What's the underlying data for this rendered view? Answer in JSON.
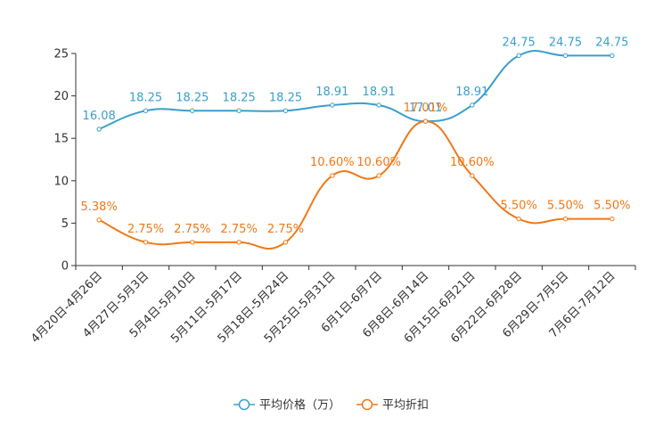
{
  "chart_data": {
    "type": "line",
    "categories": [
      "4月20日-4月26日",
      "4月27日-5月3日",
      "5月4日-5月10日",
      "5月11日-5月17日",
      "5月18日-5月24日",
      "5月25日-5月31日",
      "6月1日-6月7日",
      "6月8日-6月14日",
      "6月15日-6月21日",
      "6月22日-6月28日",
      "6月29日-7月5日",
      "7月6日-7月12日"
    ],
    "ylim": [
      0,
      25
    ],
    "yticks": [
      0,
      5,
      10,
      15,
      20,
      25
    ],
    "series": [
      {
        "name": "平均价格（万）",
        "color": "#3a9fcb",
        "values": [
          16.08,
          18.25,
          18.25,
          18.25,
          18.25,
          18.91,
          18.91,
          17.01,
          18.91,
          24.75,
          24.75,
          24.75
        ],
        "labels": [
          "16.08",
          "18.25",
          "18.25",
          "18.25",
          "18.25",
          "18.91",
          "18.91",
          "17.01",
          "18.91",
          "24.75",
          "24.75",
          "24.75"
        ]
      },
      {
        "name": "平均折扣",
        "color": "#f07818",
        "values": [
          5.38,
          2.75,
          2.75,
          2.75,
          2.75,
          10.6,
          10.6,
          17.01,
          10.6,
          5.5,
          5.5,
          5.5
        ],
        "labels": [
          "5.38%",
          "2.75%",
          "2.75%",
          "2.75%",
          "2.75%",
          "10.60%",
          "10.60%",
          "17.01%",
          "10.60%",
          "5.50%",
          "5.50%",
          "5.50%"
        ]
      }
    ],
    "legend_position": "bottom-center",
    "grid": false
  }
}
